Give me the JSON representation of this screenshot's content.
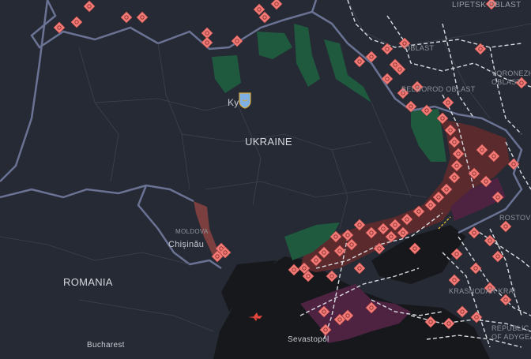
{
  "map": {
    "labels": {
      "ukraine": "UKRAINE",
      "romania": "ROMANIA",
      "moldova": "MOLDOVA",
      "kyiv": "Ky",
      "chisinau": "Chișinău",
      "bucharest": "Bucharest",
      "sevastopol": "Sevastopol",
      "lipetsk": "LIPETSK OBLAST",
      "kursk": "OBLAST",
      "belgorod": "BELGOROD OBLAST",
      "voronezh": "VORONEZH OBLAST",
      "rostov": "ROSTOV O",
      "krasnodar": "KRASNODAR KRAI",
      "adygea": "REPUBLIC OF ADYGEA"
    },
    "colors": {
      "land": "#262a34",
      "sea": "#17181c",
      "occupied": "#5b2a2d",
      "occupied_crimea": "#4e2342",
      "liberated": "#1f5a3f",
      "marker": "#f27c78",
      "border": "#6a7394"
    },
    "icons": {
      "marker": "explosion-diamond-icon",
      "capital": "kyiv-coat-of-arms-icon",
      "aircraft": "aircraft-icon"
    }
  }
}
